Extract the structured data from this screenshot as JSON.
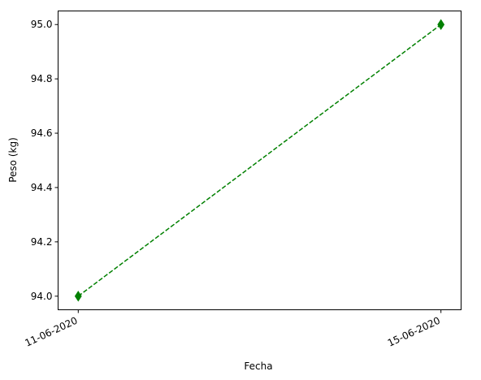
{
  "chart_data": {
    "type": "line",
    "xlabel": "Fecha",
    "ylabel": "Peso (kg)",
    "x": [
      "11-06-2020",
      "15-06-2020"
    ],
    "series": [
      {
        "values": [
          94.0,
          95.0
        ],
        "color": "#008000",
        "line_style": "dashed",
        "marker": "diamond"
      }
    ],
    "ylim": [
      93.95,
      95.05
    ],
    "yticks": [
      94.0,
      94.2,
      94.4,
      94.6,
      94.8,
      95.0
    ],
    "ytick_labels": [
      "94.0",
      "94.2",
      "94.4",
      "94.6",
      "94.8",
      "95.0"
    ],
    "grid": false
  }
}
